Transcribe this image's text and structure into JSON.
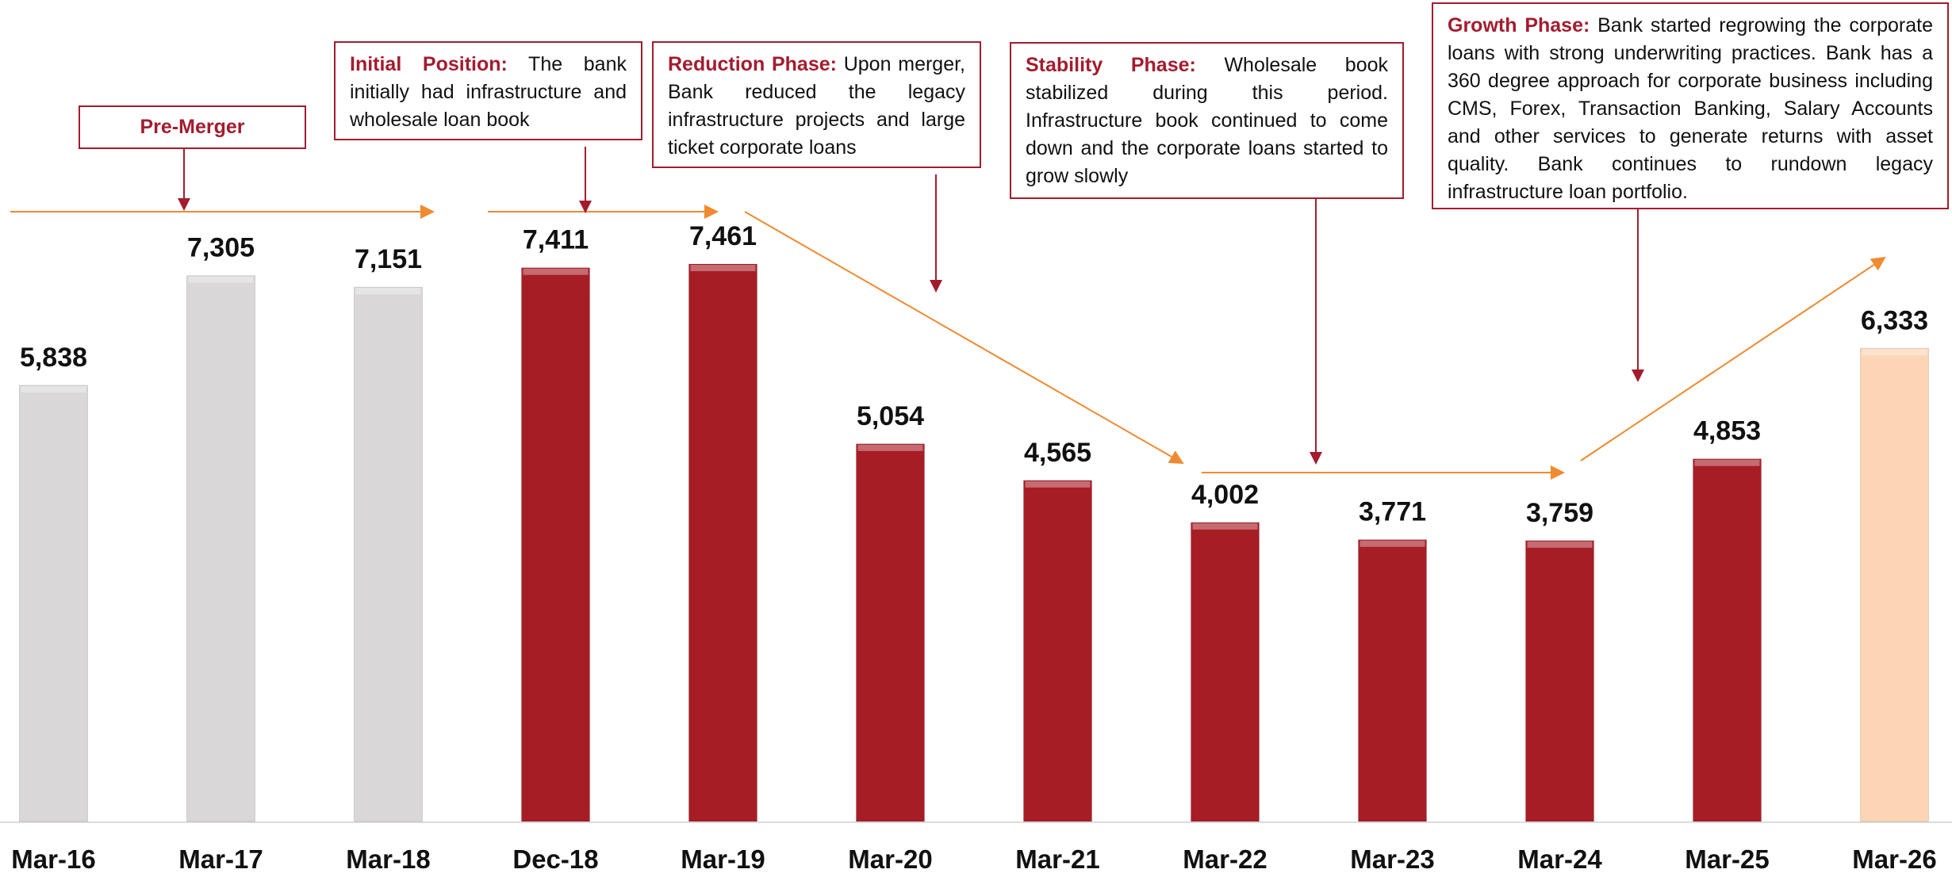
{
  "chart_data": {
    "type": "bar",
    "categories": [
      "Mar-16",
      "Mar-17",
      "Mar-18",
      "Dec-18",
      "Mar-19",
      "Mar-20",
      "Mar-21",
      "Mar-22",
      "Mar-23",
      "Mar-24",
      "Mar-25",
      "Mar-26"
    ],
    "values": [
      5838,
      7305,
      7151,
      7411,
      7461,
      5054,
      4565,
      4002,
      3771,
      3759,
      4853,
      6333
    ],
    "value_labels": [
      "5,838",
      "7,305",
      "7,151",
      "7,411",
      "7,461",
      "5,054",
      "4,565",
      "4,002",
      "3,771",
      "3,759",
      "4,853",
      "6,333"
    ],
    "colors": [
      "#d9d7d8",
      "#d9d7d8",
      "#d9d7d8",
      "#a71d26",
      "#a71d26",
      "#a71d26",
      "#a71d26",
      "#a71d26",
      "#a71d26",
      "#a71d26",
      "#a71d26",
      "#fbd5b5"
    ],
    "annotations": [
      {
        "heading": "Pre-Merger"
      },
      {
        "heading": "Initial Position:",
        "text": "The bank initially had infrastructure and wholesale loan book"
      },
      {
        "heading": "Reduction Phase:",
        "text": "Upon merger, Bank reduced the legacy infrastructure projects and large ticket corporate loans"
      },
      {
        "heading": "Stability Phase:",
        "text": "Wholesale book stabilized during this period. Infrastructure book continued to come down and the corporate loans started to grow slowly"
      },
      {
        "heading": "Growth Phase:",
        "text": "Bank started regrowing the corporate loans with strong underwriting practices. Bank has a 360 degree approach for corporate business including CMS, Forex, Transaction Banking, Salary Accounts and other services to generate returns with asset quality. Bank continues to rundown legacy infrastructure loan portfolio."
      }
    ]
  }
}
